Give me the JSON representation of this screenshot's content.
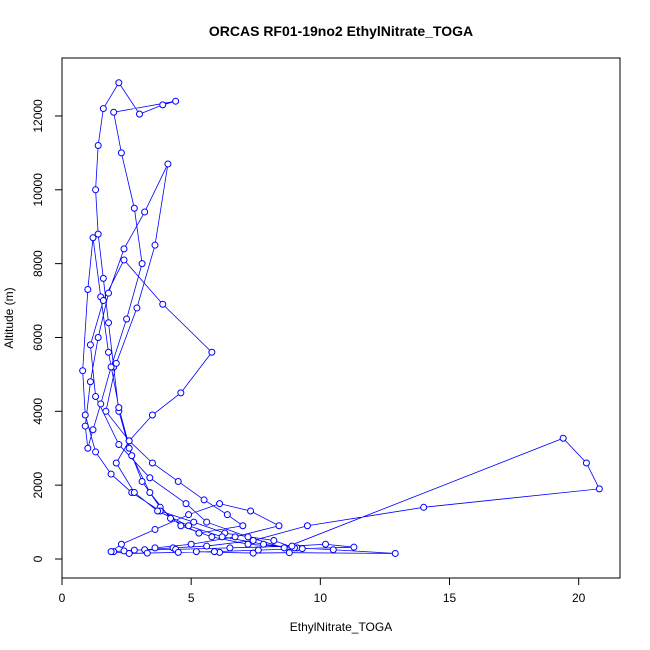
{
  "chart_data": {
    "type": "line",
    "markers": "circle",
    "title": "ORCAS RF01-19no2 EthylNitrate_TOGA",
    "x_label": "EthylNitrate_TOGA",
    "y_label": "Altitude (m)",
    "xlim": [
      0,
      21.6
    ],
    "ylim": [
      -515,
      13570
    ],
    "xticks": [
      0,
      5,
      10,
      15,
      20
    ],
    "yticks": [
      0,
      2000,
      4000,
      6000,
      8000,
      10000,
      12000
    ],
    "series": [
      {
        "color": "#0000ff",
        "x": [
          5.2,
          6.1,
          7.4,
          8.8,
          12.9,
          10.5,
          9.1,
          7.2,
          5.8,
          4.6,
          3.8,
          3.1,
          2.6,
          2.2,
          2.0,
          1.8,
          1.6,
          1.4,
          1.3,
          1.4,
          1.6,
          2.2,
          3.0,
          3.9,
          4.4,
          2.0,
          2.3,
          2.8,
          3.1,
          2.5,
          1.9,
          1.5,
          1.2,
          1.0,
          0.9,
          1.1,
          1.4,
          1.8,
          2.4,
          3.2,
          4.1,
          3.6,
          2.9,
          2.1,
          1.7,
          2.6,
          3.5,
          4.5,
          5.5,
          6.4,
          7.0,
          5.3,
          4.2,
          3.4,
          2.7,
          2.2,
          1.8,
          1.5,
          1.2,
          1.0,
          0.8,
          0.9,
          1.3,
          1.9,
          2.7,
          3.8,
          5.1,
          6.3,
          8.2,
          9.0,
          7.8,
          6.2,
          4.9,
          3.7,
          2.8,
          2.1,
          2.6,
          3.5,
          4.6,
          5.8,
          3.9,
          2.4,
          1.6,
          1.1,
          1.3,
          2.2,
          3.4,
          4.8,
          5.6,
          7.2,
          8.6,
          19.4,
          20.3,
          20.8,
          14.0,
          9.5,
          7.4,
          5.6,
          4.3,
          3.2,
          2.4,
          2.0,
          2.8,
          4.4,
          6.5,
          8.9,
          10.2,
          11.3,
          9.3,
          7.6,
          5.9,
          4.5,
          3.3,
          2.6,
          1.9,
          2.3,
          3.6,
          4.9,
          6.1,
          7.3,
          8.4,
          6.7,
          5.0,
          3.6
        ],
        "y": [
          200,
          180,
          160,
          170,
          150,
          250,
          300,
          400,
          600,
          900,
          1400,
          2100,
          3000,
          4000,
          5200,
          6400,
          7600,
          8800,
          10000,
          11200,
          12200,
          12900,
          12050,
          12300,
          12400,
          12100,
          11000,
          9500,
          8000,
          6500,
          5200,
          4200,
          3500,
          3000,
          3600,
          4800,
          6000,
          7200,
          8400,
          9400,
          10700,
          8500,
          6800,
          5300,
          4000,
          3200,
          2600,
          2100,
          1600,
          1200,
          900,
          700,
          1100,
          1800,
          2800,
          4100,
          5600,
          7100,
          8700,
          7300,
          5100,
          3900,
          2900,
          2300,
          1800,
          1300,
          1000,
          700,
          500,
          300,
          400,
          600,
          900,
          1300,
          1800,
          2600,
          3200,
          3900,
          4500,
          5600,
          6900,
          8100,
          7000,
          5800,
          4400,
          3100,
          2200,
          1500,
          1000,
          600,
          300,
          3270,
          2600,
          1900,
          1400,
          900,
          500,
          350,
          300,
          250,
          220,
          200,
          240,
          260,
          300,
          350,
          400,
          320,
          280,
          240,
          200,
          180,
          160,
          150,
          200,
          400,
          800,
          1200,
          1500,
          1300,
          900,
          600,
          400,
          300
        ]
      }
    ]
  }
}
